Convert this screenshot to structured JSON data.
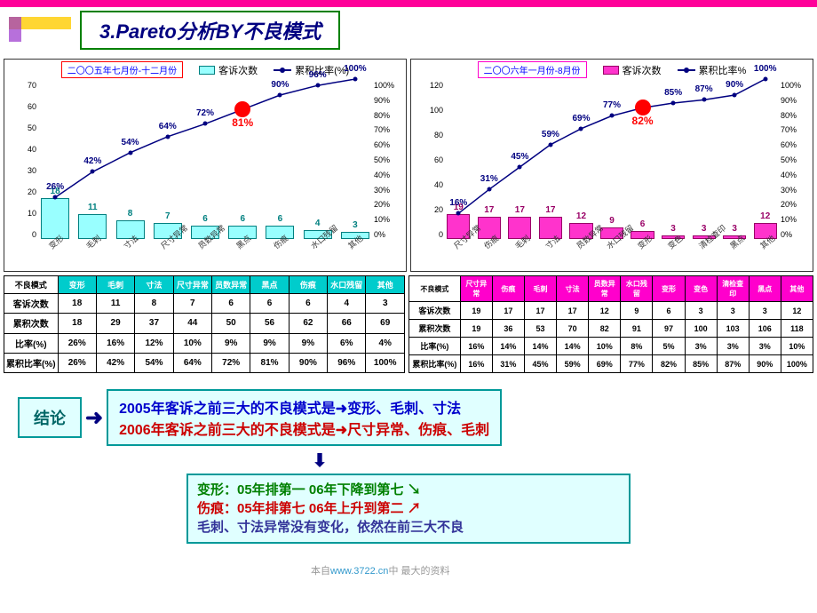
{
  "title": "3.Pareto分析BY不良模式",
  "left_chart": {
    "period": "二〇〇五年七月份-十二月份",
    "period_border": "#ff0000",
    "period_color": "#0000ff",
    "legend_bar": "客诉次数",
    "legend_line": "累积比率(%)",
    "bar_fill": "#99ffff",
    "bar_border": "#008080",
    "line_color": "#000080",
    "y_left_max": 70,
    "y_left_step": 10,
    "y_right_max": 100,
    "y_right_step": 10,
    "categories": [
      "变形",
      "毛刺",
      "寸法",
      "尺寸异常",
      "员数异常",
      "黑点",
      "伤痕",
      "水口残留",
      "其他"
    ],
    "values": [
      18,
      11,
      8,
      7,
      6,
      6,
      6,
      4,
      3
    ],
    "cum_pct": [
      26,
      42,
      54,
      64,
      72,
      81,
      90,
      96,
      100
    ],
    "highlight_index": 5,
    "highlight_label": "81%"
  },
  "right_chart": {
    "period": "二〇〇六年一月份-8月份",
    "period_border": "#ff00cc",
    "period_color": "#0000ff",
    "legend_bar": "客诉次数",
    "legend_line": "累积比率%",
    "bar_fill": "#ff33cc",
    "bar_border": "#990066",
    "line_color": "#000080",
    "y_left_max": 120,
    "y_left_step": 20,
    "y_right_max": 100,
    "y_right_step": 10,
    "categories": [
      "尺寸异常",
      "伤痕",
      "毛刺",
      "寸法",
      "员数异常",
      "水口残留",
      "变形",
      "变色",
      "清检查印",
      "黑点",
      "其他"
    ],
    "values": [
      19,
      17,
      17,
      17,
      12,
      9,
      6,
      3,
      3,
      3,
      12
    ],
    "cum_pct": [
      16,
      31,
      45,
      59,
      69,
      77,
      82,
      85,
      87,
      90,
      100
    ],
    "highlight_index": 6,
    "highlight_label": "82%"
  },
  "left_table": {
    "headers": [
      "不良模式",
      "变形",
      "毛刺",
      "寸法",
      "尺寸异常",
      "员数异常",
      "黑点",
      "伤痕",
      "水口残留",
      "其他"
    ],
    "rows": [
      {
        "h": "客诉次数",
        "v": [
          "18",
          "11",
          "8",
          "7",
          "6",
          "6",
          "6",
          "4",
          "3"
        ]
      },
      {
        "h": "累积次数",
        "v": [
          "18",
          "29",
          "37",
          "44",
          "50",
          "56",
          "62",
          "66",
          "69"
        ]
      },
      {
        "h": "比率(%)",
        "v": [
          "26%",
          "16%",
          "12%",
          "10%",
          "9%",
          "9%",
          "9%",
          "6%",
          "4%"
        ]
      },
      {
        "h": "累积比率(%)",
        "v": [
          "26%",
          "42%",
          "54%",
          "64%",
          "72%",
          "81%",
          "90%",
          "96%",
          "100%"
        ]
      }
    ]
  },
  "right_table": {
    "headers": [
      "不良模式",
      "尺寸异常",
      "伤痕",
      "毛刺",
      "寸法",
      "员数异常",
      "水口残留",
      "变形",
      "变色",
      "清检查印",
      "黑点",
      "其他"
    ],
    "rows": [
      {
        "h": "客诉次数",
        "v": [
          "19",
          "17",
          "17",
          "17",
          "12",
          "9",
          "6",
          "3",
          "3",
          "3",
          "12"
        ]
      },
      {
        "h": "累积次数",
        "v": [
          "19",
          "36",
          "53",
          "70",
          "82",
          "91",
          "97",
          "100",
          "103",
          "106",
          "118"
        ]
      },
      {
        "h": "比率(%)",
        "v": [
          "16%",
          "14%",
          "14%",
          "14%",
          "10%",
          "8%",
          "5%",
          "3%",
          "3%",
          "3%",
          "10%"
        ]
      },
      {
        "h": "累积比率(%)",
        "v": [
          "16%",
          "31%",
          "45%",
          "59%",
          "69%",
          "77%",
          "82%",
          "85%",
          "87%",
          "90%",
          "100%"
        ]
      }
    ]
  },
  "conclusion_label": "结论",
  "conclusion_2005": "2005年客诉之前三大的不良模式是➜变形、毛刺、寸法",
  "conclusion_2006": "2006年客诉之前三大的不良模式是➜尺寸异常、伤痕、毛刺",
  "detail_l1": "变形：05年排第一   06年下降到第七 ",
  "detail_l2": "伤痕：05年排第七   06年上升到第二 ",
  "detail_l3": "毛刺、寸法异常没有变化，依然在前三大不良",
  "watermark_pre": "本自",
  "watermark_link": "www.3722.cn",
  "watermark_post": "中 最大的资料"
}
